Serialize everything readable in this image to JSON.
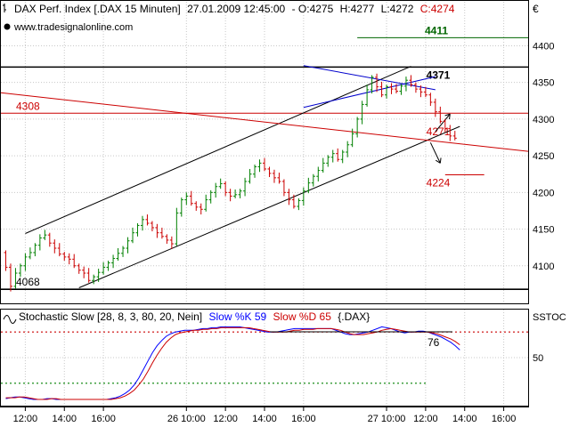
{
  "header": {
    "title": "DAX Perf. Index [.DAX  15 Minuten]",
    "datetime": "27.01.2009 12:45:00",
    "ohlc_prefix": "-",
    "open": "O:4275",
    "high": "H:4277",
    "low": "L:4272",
    "close": "C:4274",
    "website": "www.tradesignalonline.com",
    "currency": "€"
  },
  "colors": {
    "up": "#008000",
    "down": "#cc0000",
    "channel": "#000000",
    "triangle": "#0000cc",
    "level_4411": "#006600",
    "level_4308": "#cc0000",
    "level_4224": "#cc0000",
    "stoch_k": "#0000ff",
    "stoch_d": "#cc0000",
    "dotted_upper": "#cc0000",
    "dotted_lower": "#008000"
  },
  "chart_data": [
    {
      "type": "candlestick",
      "title": "DAX Perf. Index [.DAX  15 Minuten]",
      "ylim": [
        4050,
        4460
      ],
      "yticks": [
        4100,
        4150,
        4200,
        4250,
        4300,
        4350,
        4400
      ],
      "xticks": [
        {
          "t": 5,
          "label": "12:00"
        },
        {
          "t": 13,
          "label": "14:00"
        },
        {
          "t": 21,
          "label": "16:00"
        },
        {
          "t": 38,
          "label": "26 10:00"
        },
        {
          "t": 46,
          "label": "12:00"
        },
        {
          "t": 54,
          "label": "14:00"
        },
        {
          "t": 62,
          "label": "16:00"
        },
        {
          "t": 79,
          "label": "27 10:00"
        },
        {
          "t": 87,
          "label": "12:00"
        },
        {
          "t": 95,
          "label": "14:00"
        },
        {
          "t": 103,
          "label": "16:00"
        }
      ],
      "xlim": [
        0,
        108
      ],
      "price_path": [
        4118,
        4098,
        4072,
        4090,
        4100,
        4112,
        4118,
        4128,
        4138,
        4142,
        4131,
        4124,
        4116,
        4112,
        4109,
        4100,
        4094,
        4090,
        4080,
        4085,
        4091,
        4098,
        4104,
        4110,
        4117,
        4124,
        4134,
        4145,
        4155,
        4163,
        4158,
        4152,
        4145,
        4140,
        4135,
        4130,
        4172,
        4190,
        4195,
        4185,
        4180,
        4177,
        4190,
        4200,
        4208,
        4212,
        4200,
        4195,
        4197,
        4202,
        4215,
        4225,
        4235,
        4240,
        4232,
        4226,
        4220,
        4215,
        4200,
        4190,
        4181,
        4189,
        4202,
        4213,
        4222,
        4230,
        4240,
        4248,
        4253,
        4245,
        4255,
        4265,
        4280,
        4300,
        4320,
        4340,
        4357,
        4344,
        4333,
        4344,
        4341,
        4338,
        4345,
        4353,
        4347,
        4341,
        4337,
        4333,
        4323,
        4310,
        4297,
        4287,
        4277,
        4274
      ],
      "levels": [
        {
          "value": 4411,
          "label": "4411",
          "from_t": 73,
          "to_t": 100
        },
        {
          "value": 4371,
          "label": "4371",
          "from_t": 0,
          "to_t": 100
        },
        {
          "value": 4308,
          "label": "4308",
          "from_t": 0,
          "to_t": 100
        },
        {
          "value": 4224,
          "label": "4224",
          "from_t": 91,
          "to_t": 99
        },
        {
          "value": 4068,
          "label": "4068",
          "from_t": 0,
          "to_t": 100
        }
      ],
      "annotations": [
        {
          "label": "4271",
          "value": 4271
        }
      ]
    },
    {
      "type": "line",
      "title": "Stochastic Slow [28, 8, 3, 80, 20, Nein]",
      "ylim": [
        0,
        100
      ],
      "yticks": [
        50
      ],
      "ytick_label_top": "SSTOC",
      "upper_level": 80,
      "lower_level": 20,
      "k_label": "Slow %K 59",
      "d_label": "Slow %D 65",
      "suffix": "{.DAX}",
      "value_label": "76",
      "series": [
        {
          "name": "Slow %K",
          "values": [
            2,
            3,
            4,
            4,
            3,
            2,
            1,
            1,
            1,
            2,
            2,
            1,
            1,
            1,
            1,
            1,
            1,
            1,
            1,
            1,
            1,
            1,
            1,
            2,
            3,
            5,
            8,
            12,
            18,
            26,
            36,
            46,
            56,
            64,
            70,
            75,
            78,
            80,
            81,
            82,
            82,
            82,
            83,
            84,
            84,
            85,
            85,
            86,
            86,
            86,
            86,
            86,
            85,
            84,
            83,
            82,
            81,
            80,
            80,
            80,
            81,
            82,
            83,
            84,
            84,
            84,
            84,
            84,
            84,
            84,
            84,
            84,
            82,
            80,
            78,
            77,
            77,
            78,
            79,
            80,
            82,
            84,
            86,
            85,
            84,
            82,
            80,
            79,
            80,
            80,
            81,
            81,
            80,
            78,
            76,
            74,
            71,
            68,
            64,
            59
          ]
        },
        {
          "name": "Slow %D",
          "values": [
            3,
            3,
            3,
            4,
            4,
            3,
            2,
            1,
            1,
            1,
            2,
            2,
            1,
            1,
            1,
            1,
            1,
            1,
            1,
            1,
            1,
            1,
            1,
            1,
            2,
            3,
            5,
            8,
            12,
            18,
            25,
            34,
            44,
            53,
            61,
            68,
            73,
            77,
            79,
            80,
            81,
            82,
            82,
            83,
            83,
            84,
            84,
            85,
            85,
            85,
            85,
            85,
            85,
            85,
            84,
            83,
            82,
            81,
            80,
            80,
            80,
            80,
            81,
            82,
            82,
            83,
            83,
            83,
            84,
            84,
            84,
            84,
            83,
            82,
            80,
            78,
            77,
            77,
            77,
            78,
            79,
            80,
            82,
            83,
            84,
            83,
            82,
            81,
            80,
            80,
            80,
            80,
            80,
            79,
            78,
            76,
            74,
            72,
            69,
            65
          ]
        }
      ]
    }
  ]
}
